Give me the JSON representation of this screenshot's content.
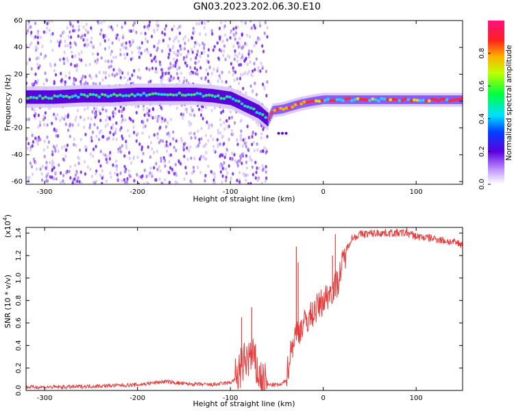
{
  "title": "GN03.2023.202.06.30.E10",
  "colors": {
    "snr_line": "#e83a3a",
    "ridge_dark": "#5a00d8",
    "cloud_purple": "#7a2cf0",
    "background": "#ffffff"
  },
  "chart_data": [
    {
      "type": "heatmap",
      "xlabel": "Height of straight line (km)",
      "ylabel": "Frequency (Hz)",
      "xlim": [
        -320,
        150
      ],
      "ylim": [
        -62,
        60
      ],
      "x_ticks": [
        -300,
        -200,
        -100,
        0,
        100
      ],
      "x_tick_labels": [
        "-300",
        "-200",
        "-100",
        "0",
        "100"
      ],
      "y_ticks": [
        -60,
        -40,
        -20,
        0,
        20,
        40,
        60
      ],
      "y_tick_labels": [
        "-60",
        "-40",
        "-20",
        "0",
        "20",
        "40",
        "60"
      ],
      "colorbar": {
        "label": "Normalized spectral amplitude",
        "range": [
          0,
          1
        ],
        "ticks": [
          0,
          0.2,
          0.4,
          0.6,
          0.8
        ],
        "tick_labels": [
          "0.0",
          "0.2",
          "0.4",
          "0.6",
          "0.8"
        ]
      },
      "ridge": {
        "x": [
          -320,
          -290,
          -260,
          -230,
          -200,
          -170,
          -140,
          -120,
          -100,
          -85,
          -70,
          -60,
          -55,
          -45,
          -35,
          -25,
          -10,
          0,
          20,
          50,
          80,
          110,
          150
        ],
        "y": [
          3,
          3,
          4,
          4,
          5,
          5,
          5,
          4,
          2,
          -3,
          -8,
          -14,
          -7,
          -6,
          -4,
          -2,
          0,
          1,
          1,
          1,
          1,
          1,
          1
        ]
      },
      "noise_region_x": [
        -320,
        -60
      ]
    },
    {
      "type": "line",
      "xlabel": "Height of straight line (km)",
      "ylabel": "SNR (10 * v/v)",
      "multiplier_label": "(x10",
      "multiplier_exp": "4",
      "multiplier_close": ")",
      "xlim": [
        -320,
        150
      ],
      "ylim": [
        0,
        14500
      ],
      "x_ticks": [
        -300,
        -200,
        -100,
        0,
        100
      ],
      "x_tick_labels": [
        "-300",
        "-200",
        "-100",
        "0",
        "100"
      ],
      "y_ticks": [
        0,
        2000,
        4000,
        6000,
        8000,
        10000,
        12000,
        14000
      ],
      "y_tick_labels": [
        "0.0",
        "0.2",
        "0.4",
        "0.6",
        "0.8",
        "1.0",
        "1.2",
        "1.4"
      ],
      "trend": {
        "x": [
          -320,
          -280,
          -240,
          -200,
          -170,
          -150,
          -120,
          -110,
          -100,
          -95,
          -90,
          -85,
          -80,
          -75,
          -70,
          -65,
          -60,
          -55,
          -50,
          -45,
          -40,
          -35,
          -30,
          -25,
          -20,
          -15,
          -10,
          -5,
          0,
          5,
          10,
          15,
          20,
          25,
          30,
          40,
          60,
          90,
          100,
          120,
          150
        ],
        "y": [
          300,
          300,
          400,
          500,
          800,
          600,
          500,
          600,
          700,
          1000,
          1800,
          2500,
          3000,
          2800,
          1500,
          700,
          500,
          500,
          500,
          500,
          1000,
          3500,
          5000,
          5500,
          6000,
          6500,
          7000,
          7500,
          8000,
          8500,
          9000,
          9500,
          11000,
          12500,
          13500,
          13900,
          14000,
          14000,
          13700,
          13500,
          13000
        ]
      },
      "spikes": [
        {
          "x": -88,
          "y": 6500
        },
        {
          "x": -77,
          "y": 7400
        },
        {
          "x": -29,
          "y": 12800
        },
        {
          "x": -27,
          "y": 11400
        },
        {
          "x": 10,
          "y": 12000
        },
        {
          "x": 13,
          "y": 13900
        },
        {
          "x": 90,
          "y": 14500
        }
      ]
    }
  ]
}
